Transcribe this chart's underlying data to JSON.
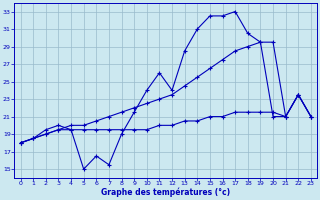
{
  "background_color": "#cce8f0",
  "grid_color": "#99bbcc",
  "line_color": "#0000bb",
  "hours": [
    0,
    1,
    2,
    3,
    4,
    5,
    6,
    7,
    8,
    9,
    10,
    11,
    12,
    13,
    14,
    15,
    16,
    17,
    18,
    19,
    20,
    21,
    22,
    23
  ],
  "jagged": [
    18.0,
    18.5,
    19.5,
    20.0,
    19.5,
    15.0,
    16.5,
    15.5,
    19.0,
    21.5,
    24.0,
    26.0,
    24.0,
    28.5,
    31.0,
    32.5,
    32.5,
    33.0,
    30.5,
    29.5,
    21.0,
    21.0,
    23.5,
    21.0
  ],
  "diagonal": [
    18.0,
    18.5,
    19.0,
    19.5,
    20.0,
    20.0,
    20.5,
    21.0,
    21.5,
    22.0,
    22.5,
    23.0,
    23.5,
    24.5,
    25.5,
    26.5,
    27.5,
    28.5,
    29.0,
    29.5,
    29.5,
    21.0,
    23.5,
    21.0
  ],
  "flat": [
    18.0,
    18.5,
    19.0,
    19.5,
    19.5,
    19.5,
    19.5,
    19.5,
    19.5,
    19.5,
    19.5,
    20.0,
    20.0,
    20.5,
    20.5,
    21.0,
    21.0,
    21.5,
    21.5,
    21.5,
    21.5,
    21.0,
    23.5,
    21.0
  ],
  "xlabel": "Graphe des températures (°c)",
  "ylim": [
    14.0,
    34.0
  ],
  "yticks": [
    15,
    17,
    19,
    21,
    23,
    25,
    27,
    29,
    31,
    33
  ],
  "xlim": [
    -0.5,
    23.5
  ]
}
